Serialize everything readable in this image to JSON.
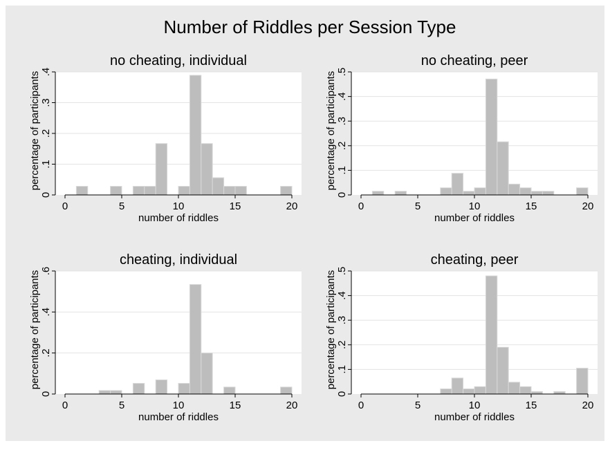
{
  "title": "Number of Riddles per Session Type",
  "colors": {
    "background": "#eaeaea",
    "plot_background": "#ffffff",
    "bar_fill": "#bdbdbd",
    "bar_stroke": "#d9d9d9",
    "grid": "#e3e3e3"
  },
  "chart_data": [
    {
      "type": "bar",
      "title": "no cheating, individual",
      "xlabel": "number of riddles",
      "ylabel": "percentage of participants",
      "xlim": [
        0,
        20
      ],
      "ylim": [
        0,
        0.4
      ],
      "xticks": [
        0,
        5,
        10,
        15,
        20
      ],
      "yticks": [
        0,
        0.1,
        0.2,
        0.3,
        0.4
      ],
      "ytick_labels": [
        "0",
        ".1",
        ".2",
        ".3",
        ".4"
      ],
      "grid": true,
      "bin_width": 1,
      "bins": [
        {
          "start": 1,
          "value": 0.028
        },
        {
          "start": 4,
          "value": 0.028
        },
        {
          "start": 6,
          "value": 0.028
        },
        {
          "start": 7,
          "value": 0.028
        },
        {
          "start": 8,
          "value": 0.167
        },
        {
          "start": 10,
          "value": 0.028
        },
        {
          "start": 11,
          "value": 0.389
        },
        {
          "start": 12,
          "value": 0.167
        },
        {
          "start": 13,
          "value": 0.056
        },
        {
          "start": 14,
          "value": 0.028
        },
        {
          "start": 15,
          "value": 0.028
        },
        {
          "start": 19,
          "value": 0.028
        }
      ]
    },
    {
      "type": "bar",
      "title": "no cheating, peer",
      "xlabel": "number of riddles",
      "ylabel": "percentage of participants",
      "xlim": [
        0,
        20
      ],
      "ylim": [
        0,
        0.5
      ],
      "xticks": [
        0,
        5,
        10,
        15,
        20
      ],
      "yticks": [
        0,
        0.1,
        0.2,
        0.3,
        0.4,
        0.5
      ],
      "ytick_labels": [
        "0",
        ".1",
        ".2",
        ".3",
        ".4",
        ".5"
      ],
      "grid": true,
      "bin_width": 1,
      "bins": [
        {
          "start": 1,
          "value": 0.015
        },
        {
          "start": 3,
          "value": 0.015
        },
        {
          "start": 7,
          "value": 0.029
        },
        {
          "start": 8,
          "value": 0.088
        },
        {
          "start": 9,
          "value": 0.015
        },
        {
          "start": 10,
          "value": 0.029
        },
        {
          "start": 11,
          "value": 0.471
        },
        {
          "start": 12,
          "value": 0.216
        },
        {
          "start": 13,
          "value": 0.044
        },
        {
          "start": 14,
          "value": 0.029
        },
        {
          "start": 15,
          "value": 0.015
        },
        {
          "start": 16,
          "value": 0.015
        },
        {
          "start": 19,
          "value": 0.029
        }
      ]
    },
    {
      "type": "bar",
      "title": "cheating, individual",
      "xlabel": "number of riddles",
      "ylabel": "percentage of participants",
      "xlim": [
        0,
        20
      ],
      "ylim": [
        0,
        0.6
      ],
      "xticks": [
        0,
        5,
        10,
        15,
        20
      ],
      "yticks": [
        0,
        0.2,
        0.4,
        0.6
      ],
      "ytick_labels": [
        "0",
        ".2",
        ".4",
        ".6"
      ],
      "grid": true,
      "bin_width": 1,
      "bins": [
        {
          "start": 3,
          "value": 0.017
        },
        {
          "start": 4,
          "value": 0.017
        },
        {
          "start": 6,
          "value": 0.052
        },
        {
          "start": 8,
          "value": 0.069
        },
        {
          "start": 10,
          "value": 0.052
        },
        {
          "start": 11,
          "value": 0.534
        },
        {
          "start": 12,
          "value": 0.2
        },
        {
          "start": 14,
          "value": 0.034
        },
        {
          "start": 19,
          "value": 0.034
        }
      ]
    },
    {
      "type": "bar",
      "title": "cheating, peer",
      "xlabel": "number of riddles",
      "ylabel": "percentage of participants",
      "xlim": [
        0,
        20
      ],
      "ylim": [
        0,
        0.5
      ],
      "xticks": [
        0,
        5,
        10,
        15,
        20
      ],
      "yticks": [
        0,
        0.1,
        0.2,
        0.3,
        0.4,
        0.5
      ],
      "ytick_labels": [
        "0",
        ".1",
        ".2",
        ".3",
        ".4",
        ".5"
      ],
      "grid": true,
      "bin_width": 1,
      "bins": [
        {
          "start": 7,
          "value": 0.021
        },
        {
          "start": 8,
          "value": 0.065
        },
        {
          "start": 9,
          "value": 0.021
        },
        {
          "start": 10,
          "value": 0.03
        },
        {
          "start": 11,
          "value": 0.48
        },
        {
          "start": 12,
          "value": 0.19
        },
        {
          "start": 13,
          "value": 0.048
        },
        {
          "start": 14,
          "value": 0.03
        },
        {
          "start": 15,
          "value": 0.01
        },
        {
          "start": 17,
          "value": 0.01
        },
        {
          "start": 19,
          "value": 0.105
        }
      ]
    }
  ]
}
